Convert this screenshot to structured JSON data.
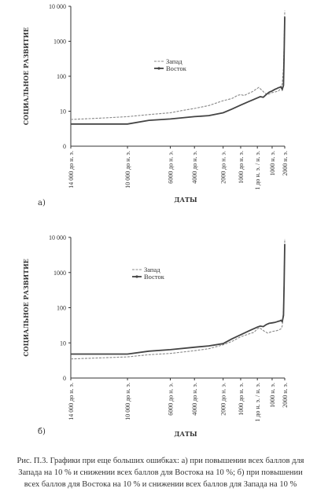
{
  "chart_data": [
    {
      "type": "line",
      "panel_label": "а)",
      "xlabel": "ДАТЫ",
      "ylabel": "СОЦИАЛЬНОЕ РАЗВИТИЕ",
      "yscale": "log",
      "ylim": [
        1,
        10000
      ],
      "yticks": [
        10000,
        1000,
        100,
        10
      ],
      "ytick_labels": [
        "10 000",
        "1000",
        "100",
        "10"
      ],
      "y_zero_label": "0",
      "xscale": "piecewise",
      "xticks": [
        -14000,
        -10000,
        -6000,
        -4000,
        -2000,
        -1000,
        1,
        1000,
        2000
      ],
      "xtick_labels": [
        "14 000 до н. э.",
        "10 000 до н. э.",
        "6000 до н. э.",
        "4000 до н. э.",
        "2000 до н. э.",
        "1000 до н. э.",
        "1 до н. э. / н. э.",
        "1000 н. э.",
        "2000 н. э."
      ],
      "legend_position": "center",
      "series": [
        {
          "name": "Запад",
          "style": "dashed",
          "color": "#888888",
          "points": [
            [
              -14000,
              5.8
            ],
            [
              -12000,
              6.3
            ],
            [
              -10000,
              7
            ],
            [
              -8000,
              8
            ],
            [
              -6000,
              9
            ],
            [
              -5000,
              10.5
            ],
            [
              -4000,
              12
            ],
            [
              -3000,
              14.5
            ],
            [
              -2500,
              17
            ],
            [
              -2000,
              20
            ],
            [
              -1500,
              23
            ],
            [
              -1200,
              28
            ],
            [
              -1000,
              30
            ],
            [
              -800,
              28
            ],
            [
              -600,
              31
            ],
            [
              -300,
              36
            ],
            [
              1,
              45
            ],
            [
              100,
              48
            ],
            [
              300,
              40
            ],
            [
              500,
              33
            ],
            [
              700,
              30
            ],
            [
              1000,
              34
            ],
            [
              1300,
              36
            ],
            [
              1500,
              38
            ],
            [
              1700,
              45
            ],
            [
              1800,
              60
            ],
            [
              1900,
              170
            ],
            [
              1950,
              900
            ],
            [
              2000,
              7500
            ]
          ]
        },
        {
          "name": "Восток",
          "style": "solid",
          "color": "#444444",
          "points": [
            [
              -14000,
              4.3
            ],
            [
              -10000,
              4.3
            ],
            [
              -8000,
              5.5
            ],
            [
              -6000,
              6
            ],
            [
              -4000,
              7
            ],
            [
              -3000,
              7.5
            ],
            [
              -2000,
              9
            ],
            [
              -1500,
              11.5
            ],
            [
              -1000,
              15
            ],
            [
              -500,
              19
            ],
            [
              1,
              24
            ],
            [
              200,
              26
            ],
            [
              400,
              25
            ],
            [
              600,
              30
            ],
            [
              800,
              35
            ],
            [
              1000,
              38
            ],
            [
              1200,
              42
            ],
            [
              1400,
              45
            ],
            [
              1500,
              47
            ],
            [
              1600,
              48
            ],
            [
              1700,
              50
            ],
            [
              1800,
              42
            ],
            [
              1900,
              55
            ],
            [
              1950,
              400
            ],
            [
              2000,
              5000
            ]
          ]
        }
      ]
    },
    {
      "type": "line",
      "panel_label": "б)",
      "xlabel": "ДАТЫ",
      "ylabel": "СОЦИАЛЬНОЕ РАЗВИТИЕ",
      "yscale": "log",
      "ylim": [
        1,
        10000
      ],
      "yticks": [
        10000,
        1000,
        100,
        10
      ],
      "ytick_labels": [
        "10 000",
        "1000",
        "100",
        "10"
      ],
      "y_zero_label": "0",
      "xscale": "piecewise",
      "xticks": [
        -14000,
        -10000,
        -6000,
        -4000,
        -2000,
        -1000,
        1,
        1000,
        2000
      ],
      "xtick_labels": [
        "14 000 до н. э.",
        "10 000 до н. э.",
        "6000 до н. э.",
        "4000 до н. э.",
        "2000 до н. э.",
        "1000 до н. э.",
        "1 до н. э. / н. э.",
        "1000 н. э.",
        "2000 н. э."
      ],
      "legend_position": "center",
      "series": [
        {
          "name": "Запад",
          "style": "dashed",
          "color": "#888888",
          "points": [
            [
              -14000,
              3.5
            ],
            [
              -10000,
              4
            ],
            [
              -8000,
              4.6
            ],
            [
              -6000,
              5
            ],
            [
              -4000,
              6
            ],
            [
              -3000,
              6.8
            ],
            [
              -2000,
              8.8
            ],
            [
              -1500,
              11
            ],
            [
              -1000,
              15
            ],
            [
              -800,
              16
            ],
            [
              -500,
              18
            ],
            [
              -200,
              20
            ],
            [
              1,
              25
            ],
            [
              150,
              27
            ],
            [
              300,
              24
            ],
            [
              500,
              21
            ],
            [
              700,
              19
            ],
            [
              1000,
              21
            ],
            [
              1300,
              22
            ],
            [
              1500,
              23
            ],
            [
              1700,
              25
            ],
            [
              1800,
              30
            ],
            [
              1900,
              90
            ],
            [
              1950,
              600
            ],
            [
              2000,
              9000
            ]
          ]
        },
        {
          "name": "Восток",
          "style": "solid",
          "color": "#444444",
          "points": [
            [
              -14000,
              4.8
            ],
            [
              -10000,
              4.8
            ],
            [
              -8000,
              5.8
            ],
            [
              -6000,
              6.4
            ],
            [
              -4000,
              7.5
            ],
            [
              -3000,
              8.2
            ],
            [
              -2000,
              9.5
            ],
            [
              -1500,
              13
            ],
            [
              -1000,
              17
            ],
            [
              -500,
              22
            ],
            [
              1,
              28
            ],
            [
              200,
              30
            ],
            [
              400,
              29
            ],
            [
              600,
              33
            ],
            [
              800,
              36
            ],
            [
              1000,
              37
            ],
            [
              1200,
              38
            ],
            [
              1400,
              40
            ],
            [
              1500,
              41
            ],
            [
              1600,
              42
            ],
            [
              1700,
              44
            ],
            [
              1800,
              40
            ],
            [
              1900,
              60
            ],
            [
              1950,
              450
            ],
            [
              2000,
              6500
            ]
          ]
        }
      ]
    }
  ],
  "caption": "Рис. П.3. Графики при еще больших ошибках: а) при повышении всех баллов для Запада на 10 % и снижении всех баллов для Востока на 10 %; б) при повышении всех баллов для Востока на 10 % и снижении всех баллов для Запада на 10 %"
}
